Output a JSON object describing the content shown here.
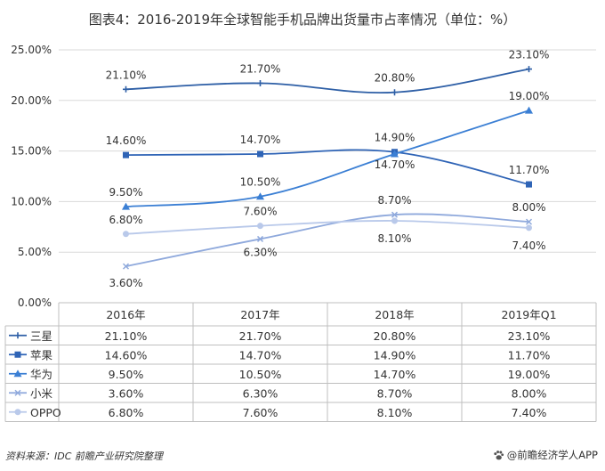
{
  "title": "图表4：2016-2019年全球智能手机品牌出货量市占率情况（单位：%）",
  "chart_data": {
    "type": "line",
    "categories": [
      "2016年",
      "2017年",
      "2018年",
      "2019年Q1"
    ],
    "ylim": [
      0,
      25
    ],
    "yticks": [
      "0.00%",
      "5.00%",
      "10.00%",
      "15.00%",
      "20.00%",
      "25.00%"
    ],
    "grid": true,
    "legend": "table-below",
    "series": [
      {
        "name": "三星",
        "values": [
          21.1,
          21.7,
          20.8,
          23.1
        ],
        "labels": [
          "21.10%",
          "21.70%",
          "20.80%",
          "23.10%"
        ],
        "color": "#2e5fa6",
        "marker": "plus"
      },
      {
        "name": "苹果",
        "values": [
          14.6,
          14.7,
          14.9,
          11.7
        ],
        "labels": [
          "14.60%",
          "14.70%",
          "14.90%",
          "11.70%"
        ],
        "color": "#2f64b6",
        "marker": "square"
      },
      {
        "name": "华为",
        "values": [
          9.5,
          10.5,
          14.7,
          19.0
        ],
        "labels": [
          "9.50%",
          "10.50%",
          "14.70%",
          "19.00%"
        ],
        "color": "#3b7fd4",
        "marker": "triangle"
      },
      {
        "name": "小米",
        "values": [
          3.6,
          6.3,
          8.7,
          8.0
        ],
        "labels": [
          "3.60%",
          "6.30%",
          "8.70%",
          "8.00%"
        ],
        "color": "#8fa9dc",
        "marker": "x"
      },
      {
        "name": "OPPO",
        "values": [
          6.8,
          7.6,
          8.1,
          7.4
        ],
        "labels": [
          "6.80%",
          "7.60%",
          "8.10%",
          "7.40%"
        ],
        "color": "#b9c9ea",
        "marker": "circle"
      }
    ]
  },
  "footer": {
    "source": "资料来源：IDC  前瞻产业研究院整理",
    "brand": "@前瞻经济学人APP"
  }
}
